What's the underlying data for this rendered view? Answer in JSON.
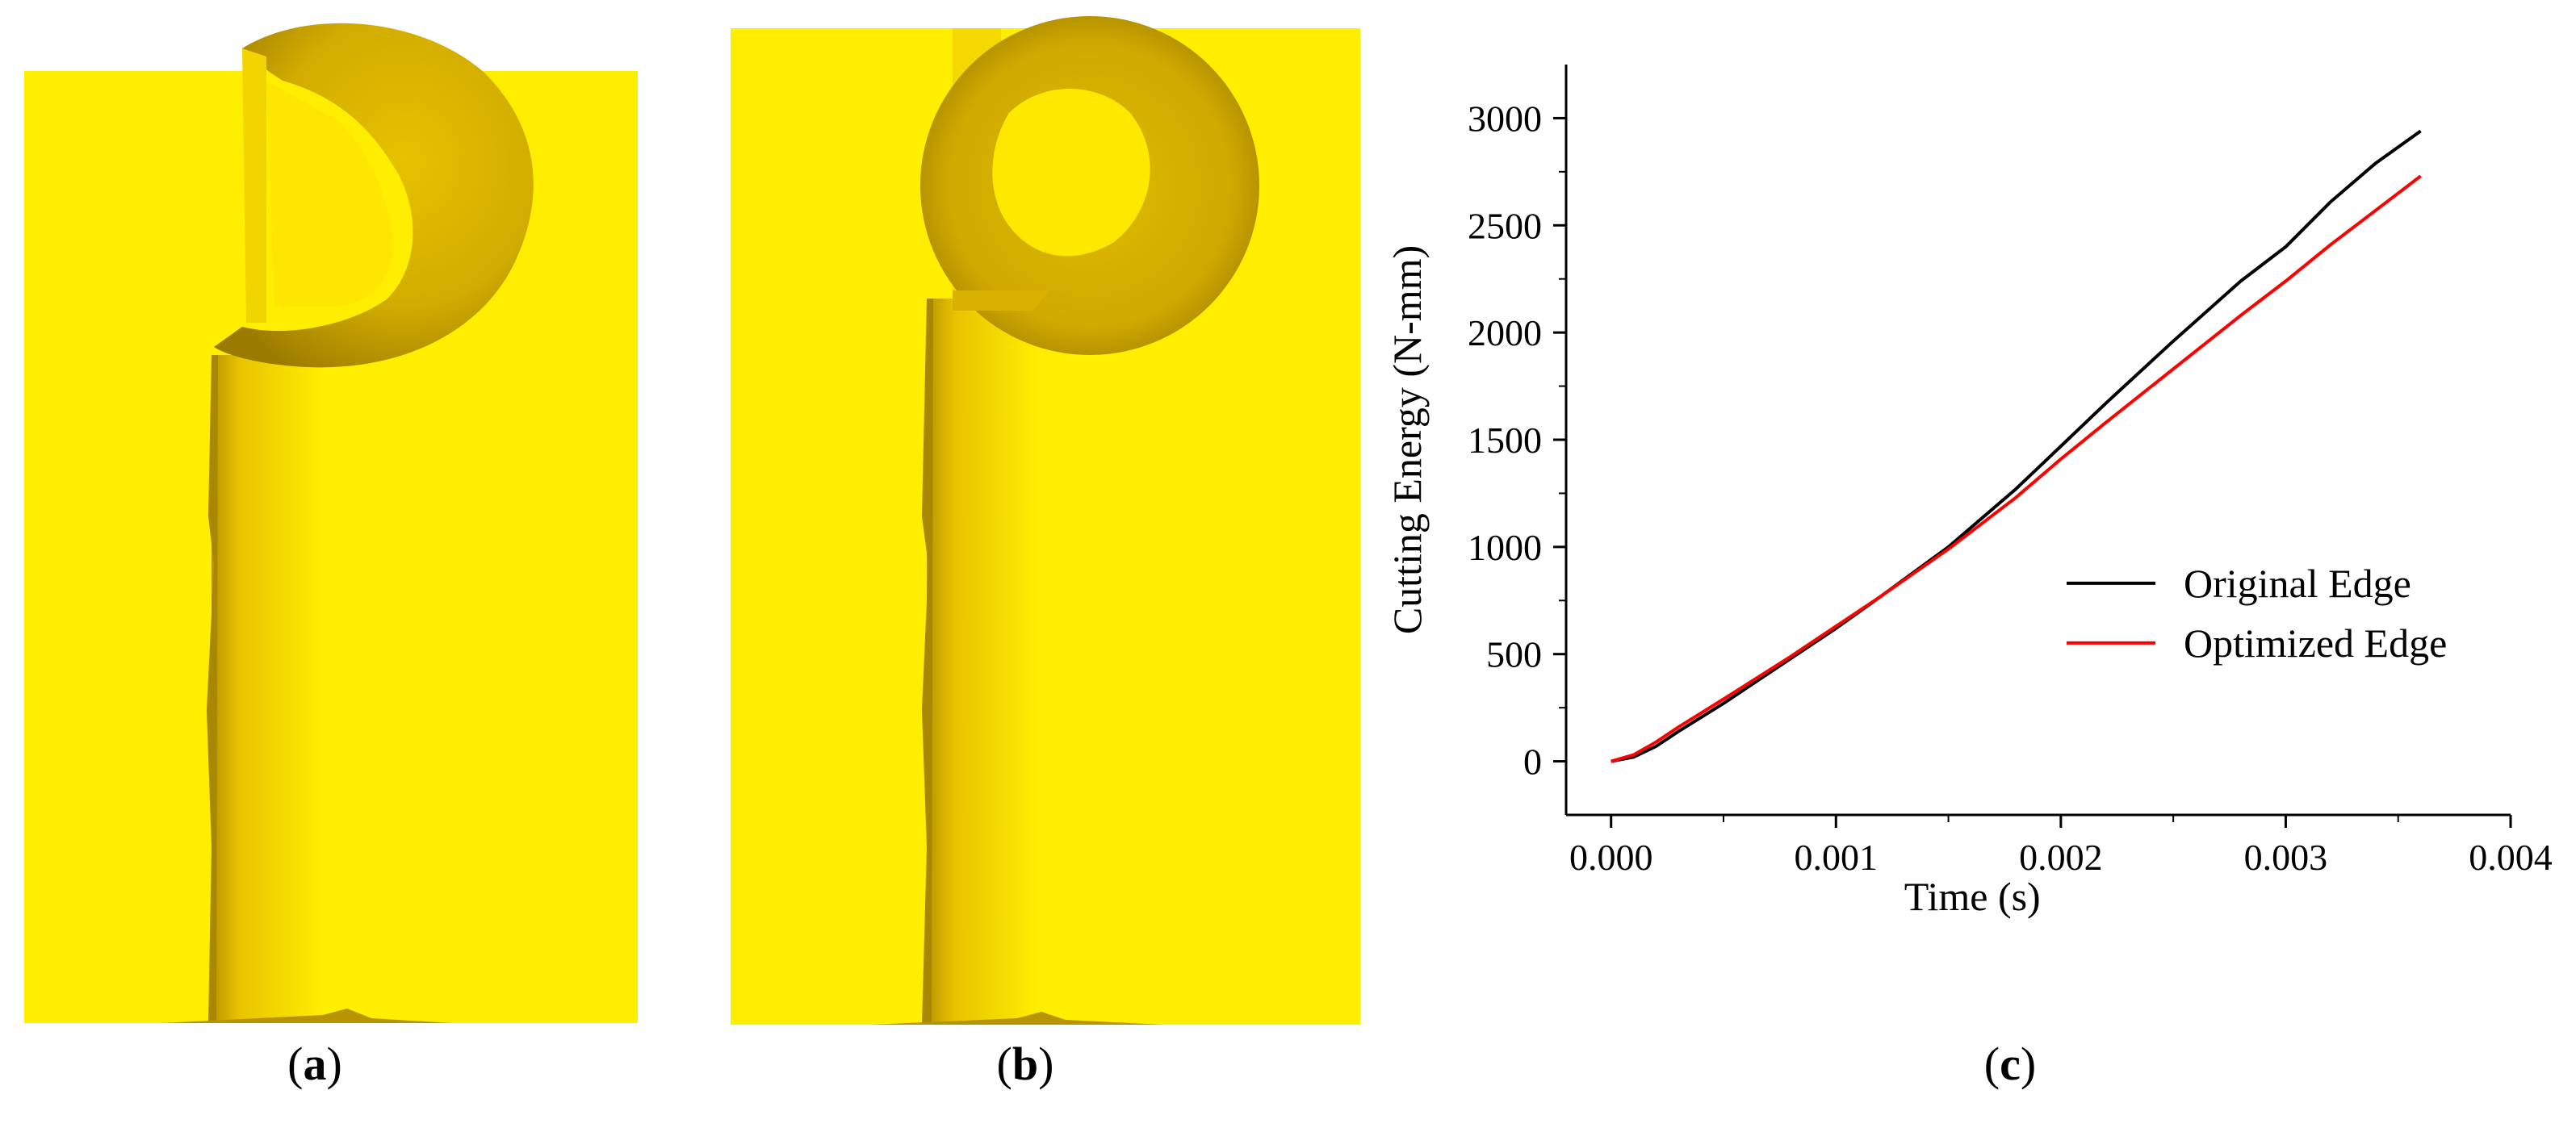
{
  "captions": {
    "a": {
      "open": "(",
      "letter": "a",
      "close": ")"
    },
    "b": {
      "open": "(",
      "letter": "b",
      "close": ")"
    },
    "c": {
      "open": "(",
      "letter": "c",
      "close": ")"
    }
  },
  "colors": {
    "workpiece": "#ffee00",
    "chip": "#d9b100",
    "chip_shadow": "#a88800",
    "original_edge": "#000000",
    "optimized_edge": "#ff0000"
  },
  "chart_data": {
    "type": "line",
    "title": "",
    "xlabel": "Time (s)",
    "ylabel": "Cutting Energy (N-mm)",
    "xlim": [
      -0.0002,
      0.004
    ],
    "ylim": [
      -250,
      3250
    ],
    "xticks": [
      0.0,
      0.001,
      0.002,
      0.003,
      0.004
    ],
    "xtick_labels": [
      "0.000",
      "0.001",
      "0.002",
      "0.003",
      "0.004"
    ],
    "yticks": [
      0,
      500,
      1000,
      1500,
      2000,
      2500,
      3000
    ],
    "ytick_labels": [
      "0",
      "500",
      "1000",
      "1500",
      "2000",
      "2500",
      "3000"
    ],
    "legend_position": "lower-right",
    "grid": false,
    "series": [
      {
        "name": "Original Edge",
        "color": "#000000",
        "x": [
          0.0,
          0.0001,
          0.0002,
          0.0003,
          0.0005,
          0.0008,
          0.001,
          0.0012,
          0.0015,
          0.0018,
          0.002,
          0.0022,
          0.0025,
          0.0028,
          0.003,
          0.0032,
          0.0034,
          0.0036
        ],
        "y": [
          0,
          20,
          70,
          140,
          270,
          480,
          620,
          770,
          1000,
          1270,
          1470,
          1670,
          1960,
          2240,
          2400,
          2610,
          2790,
          2940
        ]
      },
      {
        "name": "Optimized Edge",
        "color": "#ff0000",
        "x": [
          0.0,
          0.0001,
          0.0002,
          0.0003,
          0.0005,
          0.0008,
          0.001,
          0.0012,
          0.0015,
          0.0018,
          0.002,
          0.0022,
          0.0025,
          0.0028,
          0.003,
          0.0032,
          0.0034,
          0.0036
        ],
        "y": [
          0,
          30,
          90,
          160,
          290,
          490,
          630,
          770,
          990,
          1230,
          1410,
          1580,
          1830,
          2080,
          2240,
          2410,
          2570,
          2730
        ]
      }
    ]
  }
}
